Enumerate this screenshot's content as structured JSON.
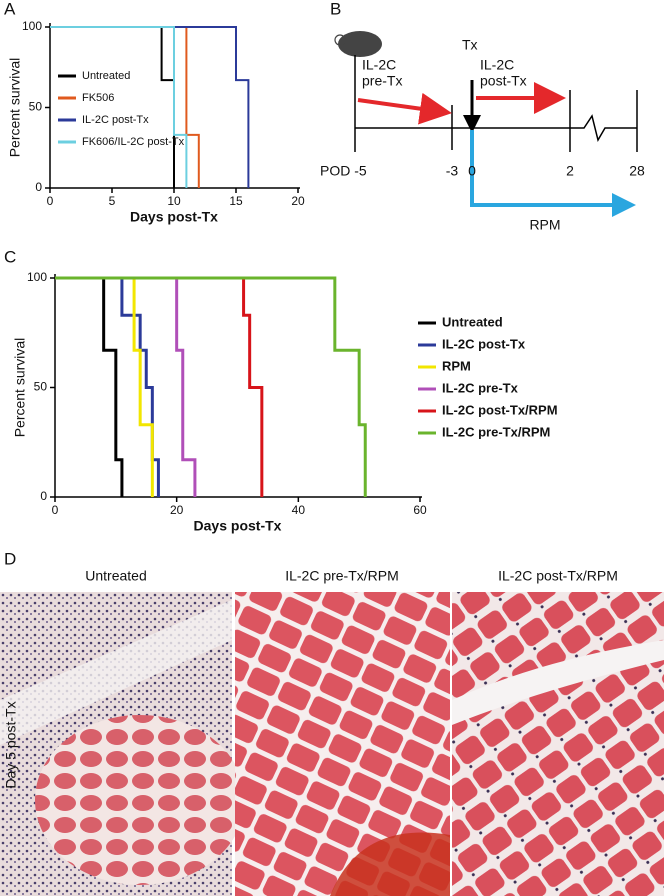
{
  "panels": [
    "A",
    "B",
    "C",
    "D"
  ],
  "chart_data": [
    {
      "type": "survival",
      "xlabel": "Days post-Tx",
      "ylabel": "Percent survival",
      "xlim": [
        0,
        20
      ],
      "xticks": [
        0,
        5,
        10,
        15,
        20
      ],
      "ylim": [
        0,
        100
      ],
      "yticks": [
        0,
        50,
        100
      ],
      "legend": "upper left",
      "series": [
        {
          "name": "Untreated",
          "color": "#000000",
          "x": [
            0,
            9,
            10
          ],
          "values": [
            100,
            67,
            0
          ]
        },
        {
          "name": "FK506",
          "color": "#e05a1e",
          "x": [
            0,
            11,
            12
          ],
          "values": [
            100,
            33,
            0
          ]
        },
        {
          "name": "IL-2C post-Tx",
          "color": "#2b3a99",
          "x": [
            0,
            15,
            16
          ],
          "values": [
            100,
            67,
            0
          ]
        },
        {
          "name": "FK606/IL-2C post-Tx",
          "color": "#6ccfe0",
          "x": [
            0,
            10,
            11
          ],
          "values": [
            100,
            33,
            0
          ]
        }
      ]
    },
    {
      "type": "survival",
      "xlabel": "Days post-Tx",
      "ylabel": "Percent survival",
      "xlim": [
        0,
        60
      ],
      "xticks": [
        0,
        20,
        40,
        60
      ],
      "ylim": [
        0,
        100
      ],
      "yticks": [
        0,
        50,
        100
      ],
      "legend": "outside right",
      "series": [
        {
          "name": "Untreated",
          "color": "#000000",
          "x": [
            0,
            8,
            10,
            11
          ],
          "values": [
            100,
            67,
            17,
            0
          ]
        },
        {
          "name": "IL-2C post-Tx",
          "color": "#2b3a99",
          "x": [
            0,
            11,
            14,
            15,
            16,
            17
          ],
          "values": [
            100,
            83,
            67,
            50,
            17,
            0
          ]
        },
        {
          "name": "RPM",
          "color": "#f2e600",
          "x": [
            0,
            13,
            14,
            16
          ],
          "values": [
            100,
            67,
            33,
            0
          ]
        },
        {
          "name": "IL-2C pre-Tx",
          "color": "#b04fb8",
          "x": [
            0,
            20,
            21,
            23
          ],
          "values": [
            100,
            67,
            17,
            0
          ]
        },
        {
          "name": "IL-2C post-Tx/RPM",
          "color": "#d7141a",
          "x": [
            0,
            31,
            32,
            34
          ],
          "values": [
            100,
            83,
            50,
            0
          ]
        },
        {
          "name": "IL-2C pre-Tx/RPM",
          "color": "#6ab42d",
          "x": [
            0,
            46,
            50,
            51
          ],
          "values": [
            100,
            67,
            33,
            0
          ]
        }
      ]
    }
  ],
  "diagram": {
    "timepoints": [
      "POD -5",
      "-3",
      "0",
      "2",
      "28"
    ],
    "pre": [
      "IL-2C",
      "pre-Tx"
    ],
    "tx": "Tx",
    "post": [
      "IL-2C",
      "post-Tx"
    ],
    "rpm": "RPM"
  },
  "micrographs": {
    "row_label": "Day 5 post-Tx",
    "titles": [
      "Untreated",
      "IL-2C pre-Tx/RPM",
      "IL-2C post-Tx/RPM"
    ]
  }
}
